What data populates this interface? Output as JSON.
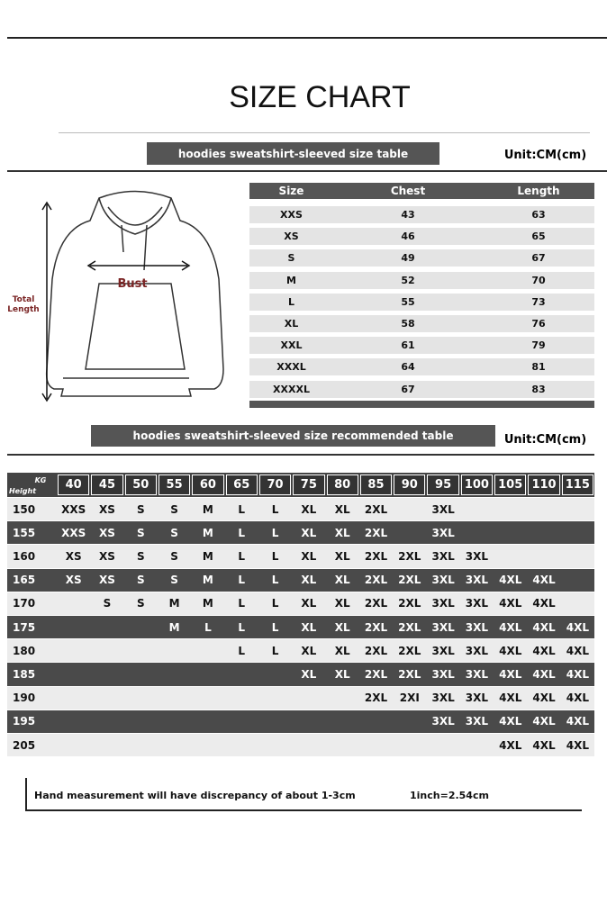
{
  "title": "SIZE CHART",
  "size_table": {
    "header": "hoodies sweatshirt-sleeved size  table",
    "unit": "Unit:CM(cm)",
    "illustration": {
      "bust": "Bust",
      "length": "Total Length"
    },
    "columns": [
      "Size",
      "Chest",
      "Length"
    ],
    "rows": [
      [
        "XXS",
        43,
        63
      ],
      [
        "XS",
        46,
        65
      ],
      [
        "S",
        49,
        67
      ],
      [
        "M",
        52,
        70
      ],
      [
        "L",
        55,
        73
      ],
      [
        "XL",
        58,
        76
      ],
      [
        "XXL",
        61,
        79
      ],
      [
        "XXXL",
        64,
        81
      ],
      [
        "XXXXL",
        67,
        83
      ]
    ]
  },
  "recommend_table": {
    "header": "hoodies sweatshirt-sleeved size recommended table",
    "unit": "Unit:CM(cm)",
    "corner": {
      "top": "KG",
      "bottom": "Height"
    },
    "weights": [
      40,
      45,
      50,
      55,
      60,
      65,
      70,
      75,
      80,
      85,
      90,
      95,
      100,
      105,
      110,
      115
    ],
    "rows": [
      {
        "height": 150,
        "cells": [
          "XXS",
          "XS",
          "S",
          "S",
          "M",
          "L",
          "L",
          "XL",
          "XL",
          "2XL",
          null,
          "3XL",
          null,
          null,
          null,
          null
        ]
      },
      {
        "height": 155,
        "cells": [
          "XXS",
          "XS",
          "S",
          "S",
          "M",
          "L",
          "L",
          "XL",
          "XL",
          "2XL",
          null,
          "3XL",
          null,
          null,
          null,
          null
        ]
      },
      {
        "height": 160,
        "cells": [
          "XS",
          "XS",
          "S",
          "S",
          "M",
          "L",
          "L",
          "XL",
          "XL",
          "2XL",
          "2XL",
          "3XL",
          "3XL",
          null,
          null,
          null
        ]
      },
      {
        "height": 165,
        "cells": [
          "XS",
          "XS",
          "S",
          "S",
          "M",
          "L",
          "L",
          "XL",
          "XL",
          "2XL",
          "2XL",
          "3XL",
          "3XL",
          "4XL",
          "4XL",
          null
        ]
      },
      {
        "height": 170,
        "cells": [
          null,
          "S",
          "S",
          "M",
          "M",
          "L",
          "L",
          "XL",
          "XL",
          "2XL",
          "2XL",
          "3XL",
          "3XL",
          "4XL",
          "4XL",
          null
        ]
      },
      {
        "height": 175,
        "cells": [
          null,
          null,
          null,
          "M",
          "L",
          "L",
          "L",
          "XL",
          "XL",
          "2XL",
          "2XL",
          "3XL",
          "3XL",
          "4XL",
          "4XL",
          "4XL"
        ]
      },
      {
        "height": 180,
        "cells": [
          null,
          null,
          null,
          null,
          null,
          "L",
          "L",
          "XL",
          "XL",
          "2XL",
          "2XL",
          "3XL",
          "3XL",
          "4XL",
          "4XL",
          "4XL"
        ]
      },
      {
        "height": 185,
        "cells": [
          null,
          null,
          null,
          null,
          null,
          null,
          null,
          "XL",
          "XL",
          "2XL",
          "2XL",
          "3XL",
          "3XL",
          "4XL",
          "4XL",
          "4XL"
        ]
      },
      {
        "height": 190,
        "cells": [
          null,
          null,
          null,
          null,
          null,
          null,
          null,
          null,
          null,
          "2XL",
          "2XI",
          "3XL",
          "3XL",
          "4XL",
          "4XL",
          "4XL"
        ]
      },
      {
        "height": 195,
        "cells": [
          null,
          null,
          null,
          null,
          null,
          null,
          null,
          null,
          null,
          null,
          null,
          "3XL",
          "3XL",
          "4XL",
          "4XL",
          "4XL"
        ]
      },
      {
        "height": 205,
        "cells": [
          null,
          null,
          null,
          null,
          null,
          null,
          null,
          null,
          null,
          null,
          null,
          null,
          null,
          "4XL",
          "4XL",
          "4XL"
        ]
      }
    ]
  },
  "footer": {
    "note": "Hand measurement will have discrepancy of about  1-3cm",
    "conversion": "1inch=2.54cm"
  }
}
